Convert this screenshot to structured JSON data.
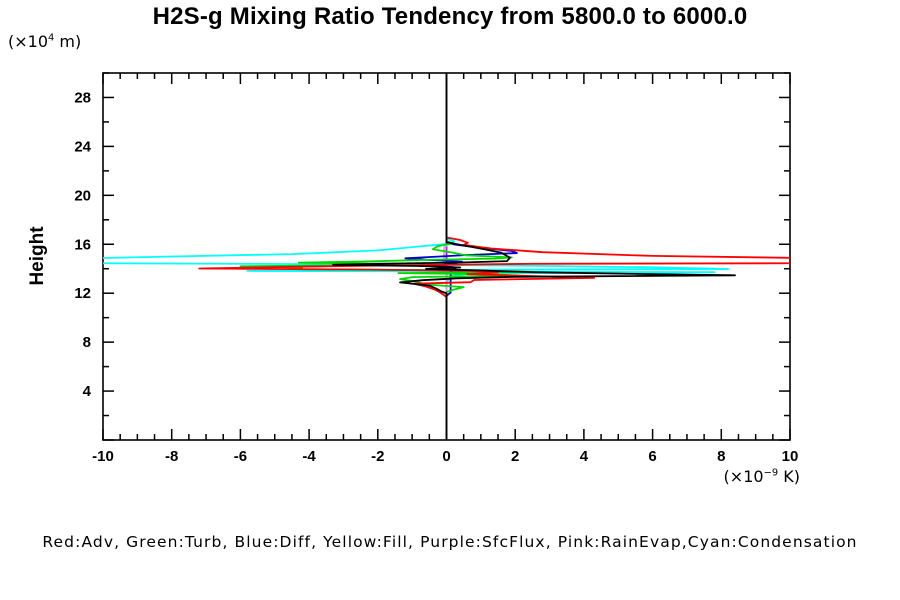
{
  "title": "H2S-g Mixing Ratio Tendency from 5800.0 to 6000.0",
  "y_unit": {
    "pre": "(×10",
    "sup": "4",
    "post": " m)"
  },
  "x_unit": {
    "pre": "(×10",
    "sup": "−9",
    "post": " K)"
  },
  "ylabel": "Height",
  "legend": "Red:Adv, Green:Turb, Blue:Diff, Yellow:Fill, Purple:SfcFlux, Pink:RainEvap,Cyan:Condensation",
  "chart_data": {
    "type": "line",
    "orientation": "vertical-profile",
    "title": "H2S-g Mixing Ratio Tendency from 5800.0 to 6000.0",
    "xlabel": "(×10^-9 K)",
    "ylabel": "Height (×10^4 m)",
    "xlim": [
      -10,
      10
    ],
    "ylim": [
      0,
      30
    ],
    "grid": false,
    "xticks": {
      "major_step": 2,
      "minor_step": 0.5,
      "labels": [
        -10,
        -8,
        -6,
        -4,
        -2,
        0,
        2,
        4,
        6,
        8,
        10
      ]
    },
    "yticks": {
      "major_step": 4,
      "minor_step": 2,
      "labels": [
        4,
        8,
        12,
        16,
        20,
        24,
        28
      ]
    },
    "zero_line": {
      "x": 0,
      "color": "#00ffff"
    },
    "series": [
      {
        "name": "Fill",
        "color": "#ffff00",
        "points": [
          [
            0,
            30
          ],
          [
            0,
            0
          ]
        ]
      },
      {
        "name": "SfcFlux",
        "color": "#a020f0",
        "points": [
          [
            0,
            30
          ],
          [
            0,
            0
          ]
        ]
      },
      {
        "name": "Condensation",
        "color": "#00ffff",
        "points": [
          [
            0,
            30
          ],
          [
            0,
            16.45
          ],
          [
            0.22,
            16.25
          ],
          [
            0.12,
            16.05
          ],
          [
            -0.7,
            15.85
          ],
          [
            -2.0,
            15.5
          ],
          [
            -4.5,
            15.2
          ],
          [
            -8.0,
            15.0
          ],
          [
            -10.35,
            14.85
          ],
          [
            -10.35,
            14.45
          ],
          [
            -4.0,
            14.38
          ],
          [
            0.5,
            14.3
          ],
          [
            3.0,
            14.22
          ],
          [
            6.0,
            14.12
          ],
          [
            8.2,
            13.98
          ],
          [
            -2.0,
            13.9
          ],
          [
            -5.8,
            13.82
          ],
          [
            7.8,
            13.72
          ],
          [
            0.6,
            13.6
          ],
          [
            0.15,
            13.4
          ],
          [
            0.05,
            13.1
          ],
          [
            0,
            12.8
          ],
          [
            0,
            0
          ]
        ]
      },
      {
        "name": "RainEvap",
        "color": "#e89aef",
        "points": [
          [
            0,
            30
          ],
          [
            0,
            15.9
          ],
          [
            -0.07,
            15.75
          ],
          [
            -0.07,
            14.6
          ],
          [
            0,
            14.45
          ],
          [
            0,
            0
          ]
        ]
      },
      {
        "name": "Diff",
        "color": "#0000d0",
        "points": [
          [
            0,
            30
          ],
          [
            0,
            16.1
          ],
          [
            0.3,
            15.95
          ],
          [
            0.75,
            15.8
          ],
          [
            1.3,
            15.62
          ],
          [
            1.9,
            15.45
          ],
          [
            2.05,
            15.28
          ],
          [
            0.6,
            15.12
          ],
          [
            -0.4,
            14.97
          ],
          [
            -1.2,
            14.85
          ],
          [
            -0.55,
            14.72
          ],
          [
            0.45,
            14.58
          ],
          [
            0.2,
            14.4
          ],
          [
            -0.35,
            14.25
          ],
          [
            0.3,
            14.1
          ],
          [
            0.15,
            13.9
          ],
          [
            0.12,
            13.5
          ],
          [
            0.12,
            12.05
          ],
          [
            0.05,
            11.9
          ],
          [
            0,
            11.75
          ],
          [
            0,
            0
          ]
        ]
      },
      {
        "name": "Turb",
        "color": "#00d800",
        "points": [
          [
            0,
            30
          ],
          [
            0,
            16.25
          ],
          [
            0.2,
            16.08
          ],
          [
            -0.25,
            15.85
          ],
          [
            -0.4,
            15.6
          ],
          [
            0.2,
            15.3
          ],
          [
            0.55,
            15.1
          ],
          [
            1.9,
            14.93
          ],
          [
            1.4,
            14.83
          ],
          [
            -0.6,
            14.72
          ],
          [
            -2.3,
            14.6
          ],
          [
            -4.3,
            14.5
          ],
          [
            -2.0,
            14.42
          ],
          [
            -1.4,
            14.32
          ],
          [
            -6.0,
            14.2
          ],
          [
            -4.2,
            14.08
          ],
          [
            -4.3,
            13.95
          ],
          [
            0.9,
            13.85
          ],
          [
            2.5,
            13.74
          ],
          [
            -1.4,
            13.64
          ],
          [
            1.4,
            13.54
          ],
          [
            2.1,
            13.44
          ],
          [
            -1.0,
            13.32
          ],
          [
            -1.35,
            13.15
          ],
          [
            -0.9,
            12.95
          ],
          [
            -0.55,
            12.7
          ],
          [
            0.5,
            12.5
          ],
          [
            0.2,
            12.28
          ],
          [
            0,
            12.1
          ],
          [
            0,
            0
          ]
        ]
      },
      {
        "name": "Adv",
        "color": "#ff0000",
        "points": [
          [
            0,
            30
          ],
          [
            0,
            16.55
          ],
          [
            0.4,
            16.35
          ],
          [
            0.62,
            16.12
          ],
          [
            0.5,
            15.95
          ],
          [
            1.3,
            15.65
          ],
          [
            2.8,
            15.35
          ],
          [
            6.0,
            15.05
          ],
          [
            10.4,
            14.88
          ],
          [
            10.4,
            14.45
          ],
          [
            2.5,
            14.4
          ],
          [
            -1.0,
            14.3
          ],
          [
            -4.5,
            14.16
          ],
          [
            -7.2,
            14.02
          ],
          [
            -2.2,
            13.93
          ],
          [
            0.7,
            13.83
          ],
          [
            1.5,
            13.7
          ],
          [
            0.6,
            13.56
          ],
          [
            2.2,
            13.42
          ],
          [
            4.3,
            13.25
          ],
          [
            0.8,
            13.08
          ],
          [
            0.7,
            12.9
          ],
          [
            -0.95,
            12.78
          ],
          [
            -0.6,
            12.55
          ],
          [
            -0.35,
            12.3
          ],
          [
            -0.18,
            12.05
          ],
          [
            -0.08,
            11.85
          ],
          [
            0,
            11.68
          ],
          [
            0,
            0
          ]
        ]
      },
      {
        "name": "total",
        "color": "#000000",
        "points": [
          [
            0,
            30
          ],
          [
            0,
            16.18
          ],
          [
            0.35,
            15.98
          ],
          [
            1.1,
            15.6
          ],
          [
            1.6,
            15.3
          ],
          [
            1.85,
            14.9
          ],
          [
            1.76,
            14.62
          ],
          [
            0.3,
            14.5
          ],
          [
            -1.8,
            14.42
          ],
          [
            -3.3,
            14.32
          ],
          [
            -0.8,
            14.22
          ],
          [
            0.4,
            14.1
          ],
          [
            -0.6,
            13.98
          ],
          [
            0.9,
            13.86
          ],
          [
            2.5,
            13.72
          ],
          [
            5.5,
            13.58
          ],
          [
            8.4,
            13.46
          ],
          [
            2.0,
            13.34
          ],
          [
            0.3,
            13.22
          ],
          [
            -0.7,
            13.06
          ],
          [
            -1.35,
            12.88
          ],
          [
            -0.5,
            12.62
          ],
          [
            -0.3,
            12.38
          ],
          [
            -0.15,
            12.15
          ],
          [
            0,
            11.98
          ],
          [
            0,
            0
          ]
        ]
      }
    ]
  }
}
